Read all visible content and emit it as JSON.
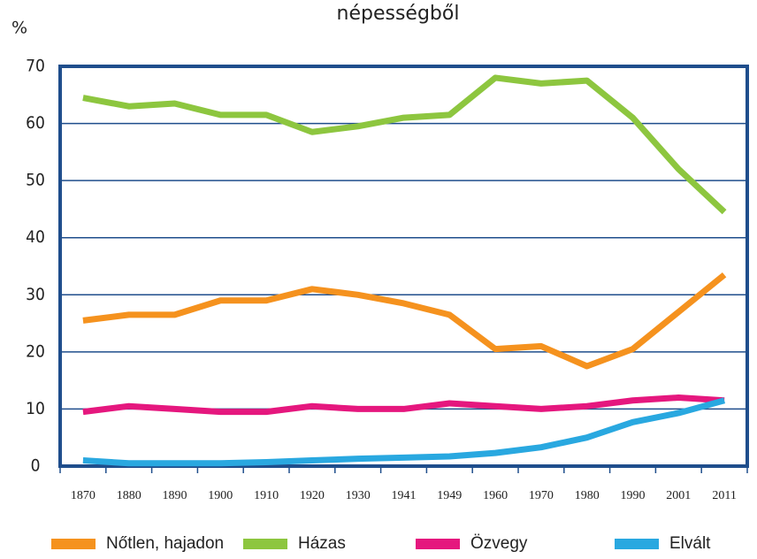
{
  "chart_data": {
    "type": "line",
    "title": "népességből",
    "y_label": "%",
    "categories": [
      "1870",
      "1880",
      "1890",
      "1900",
      "1910",
      "1920",
      "1930",
      "1941",
      "1949",
      "1960",
      "1970",
      "1980",
      "1990",
      "2001",
      "2011"
    ],
    "series": [
      {
        "name": "Nőtlen, hajadon",
        "color": "#f5921e",
        "values": [
          25.5,
          26.5,
          26.5,
          29,
          29,
          31,
          30,
          28.5,
          26.5,
          20.5,
          21,
          17.5,
          20.5,
          27,
          33.5
        ]
      },
      {
        "name": "Házas",
        "color": "#8dc63f",
        "values": [
          64.5,
          63,
          63.5,
          61.5,
          61.5,
          58.5,
          59.5,
          61,
          61.5,
          68,
          67,
          67.5,
          61,
          52,
          44.5
        ]
      },
      {
        "name": "Özvegy",
        "color": "#e5177e",
        "values": [
          9.5,
          10.5,
          10,
          9.5,
          9.5,
          10.5,
          10,
          10,
          11,
          10.5,
          10,
          10.5,
          11.5,
          12,
          11.5
        ]
      },
      {
        "name": "Elvált",
        "color": "#29a8e0",
        "values": [
          1,
          0.5,
          0.5,
          0.5,
          0.7,
          1,
          1.3,
          1.5,
          1.7,
          2.3,
          3.3,
          5,
          7.7,
          9.3,
          11.5
        ]
      }
    ],
    "ylim": [
      0,
      70
    ],
    "yticks": [
      0,
      10,
      20,
      30,
      40,
      50,
      60,
      70
    ],
    "grid": true,
    "legend": "bottom"
  }
}
